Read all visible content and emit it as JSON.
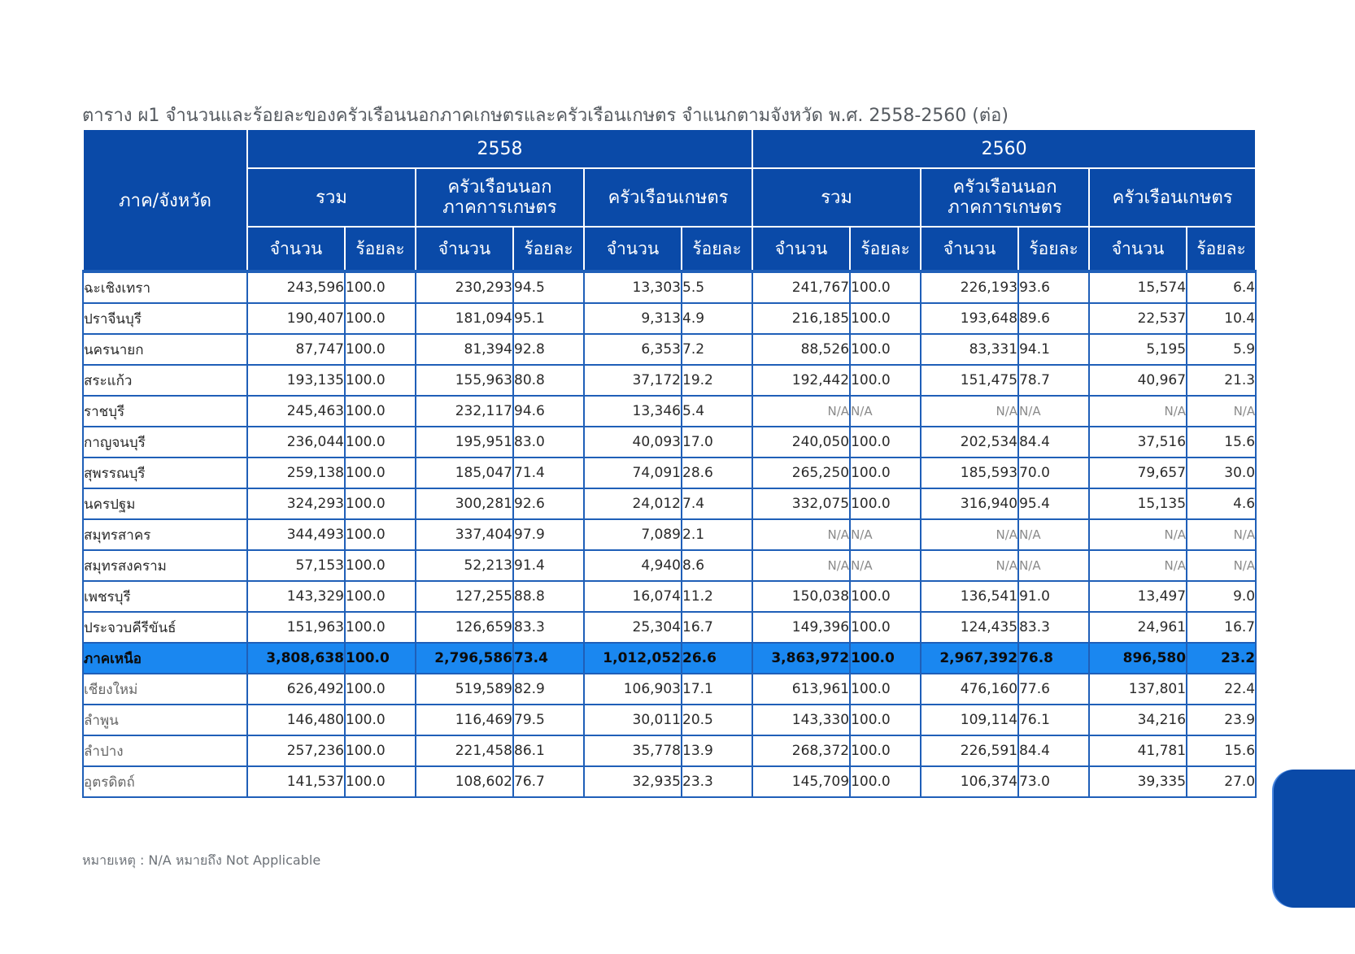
{
  "title": "ตาราง ผ1 จำนวนและร้อยละของครัวเรือนนอกภาคเกษตรและครัวเรือนเกษตร จำแนกตามจังหวัด พ.ศ. 2558-2560 (ต่อ)",
  "header": {
    "region": "ภาค/จังหวัด",
    "years": [
      "2558",
      "2560"
    ],
    "groups": [
      "รวม",
      "ครัวเรือนนอก ภาคการเกษตร",
      "ครัวเรือนเกษตร"
    ],
    "group_lines": [
      [
        "รวม"
      ],
      [
        "ครัวเรือนนอก",
        "ภาคการเกษตร"
      ],
      [
        "ครัวเรือนเกษตร"
      ]
    ],
    "count": "จำนวน",
    "percent": "ร้อยละ"
  },
  "rows": [
    {
      "name": "ฉะเชิงเทรา",
      "type": "province",
      "v": [
        "243,596",
        "100.0",
        "230,293",
        "94.5",
        "13,303",
        "5.5",
        "241,767",
        "100.0",
        "226,193",
        "93.6",
        "15,574",
        "6.4"
      ]
    },
    {
      "name": "ปราจีนบุรี",
      "type": "province",
      "v": [
        "190,407",
        "100.0",
        "181,094",
        "95.1",
        "9,313",
        "4.9",
        "216,185",
        "100.0",
        "193,648",
        "89.6",
        "22,537",
        "10.4"
      ]
    },
    {
      "name": "นครนายก",
      "type": "province",
      "v": [
        "87,747",
        "100.0",
        "81,394",
        "92.8",
        "6,353",
        "7.2",
        "88,526",
        "100.0",
        "83,331",
        "94.1",
        "5,195",
        "5.9"
      ]
    },
    {
      "name": "สระแก้ว",
      "type": "province",
      "v": [
        "193,135",
        "100.0",
        "155,963",
        "80.8",
        "37,172",
        "19.2",
        "192,442",
        "100.0",
        "151,475",
        "78.7",
        "40,967",
        "21.3"
      ]
    },
    {
      "name": "ราชบุรี",
      "type": "province",
      "v": [
        "245,463",
        "100.0",
        "232,117",
        "94.6",
        "13,346",
        "5.4",
        "N/A",
        "N/A",
        "N/A",
        "N/A",
        "N/A",
        "N/A"
      ]
    },
    {
      "name": "กาญจนบุรี",
      "type": "province",
      "v": [
        "236,044",
        "100.0",
        "195,951",
        "83.0",
        "40,093",
        "17.0",
        "240,050",
        "100.0",
        "202,534",
        "84.4",
        "37,516",
        "15.6"
      ]
    },
    {
      "name": "สุพรรณบุรี",
      "type": "province",
      "v": [
        "259,138",
        "100.0",
        "185,047",
        "71.4",
        "74,091",
        "28.6",
        "265,250",
        "100.0",
        "185,593",
        "70.0",
        "79,657",
        "30.0"
      ]
    },
    {
      "name": "นครปฐม",
      "type": "province",
      "v": [
        "324,293",
        "100.0",
        "300,281",
        "92.6",
        "24,012",
        "7.4",
        "332,075",
        "100.0",
        "316,940",
        "95.4",
        "15,135",
        "4.6"
      ]
    },
    {
      "name": "สมุทรสาคร",
      "type": "province",
      "v": [
        "344,493",
        "100.0",
        "337,404",
        "97.9",
        "7,089",
        "2.1",
        "N/A",
        "N/A",
        "N/A",
        "N/A",
        "N/A",
        "N/A"
      ]
    },
    {
      "name": "สมุทรสงคราม",
      "type": "province",
      "v": [
        "57,153",
        "100.0",
        "52,213",
        "91.4",
        "4,940",
        "8.6",
        "N/A",
        "N/A",
        "N/A",
        "N/A",
        "N/A",
        "N/A"
      ]
    },
    {
      "name": "เพชรบุรี",
      "type": "province",
      "v": [
        "143,329",
        "100.0",
        "127,255",
        "88.8",
        "16,074",
        "11.2",
        "150,038",
        "100.0",
        "136,541",
        "91.0",
        "13,497",
        "9.0"
      ]
    },
    {
      "name": "ประจวบคีรีขันธ์",
      "type": "province",
      "v": [
        "151,963",
        "100.0",
        "126,659",
        "83.3",
        "25,304",
        "16.7",
        "149,396",
        "100.0",
        "124,435",
        "83.3",
        "24,961",
        "16.7"
      ]
    },
    {
      "name": "ภาคเหนือ",
      "type": "region",
      "v": [
        "3,808,638",
        "100.0",
        "2,796,586",
        "73.4",
        "1,012,052",
        "26.6",
        "3,863,972",
        "100.0",
        "2,967,392",
        "76.8",
        "896,580",
        "23.2"
      ]
    },
    {
      "name": "เชียงใหม่",
      "type": "sub",
      "v": [
        "626,492",
        "100.0",
        "519,589",
        "82.9",
        "106,903",
        "17.1",
        "613,961",
        "100.0",
        "476,160",
        "77.6",
        "137,801",
        "22.4"
      ]
    },
    {
      "name": "ลำพูน",
      "type": "sub",
      "v": [
        "146,480",
        "100.0",
        "116,469",
        "79.5",
        "30,011",
        "20.5",
        "143,330",
        "100.0",
        "109,114",
        "76.1",
        "34,216",
        "23.9"
      ]
    },
    {
      "name": "ลำปาง",
      "type": "sub",
      "v": [
        "257,236",
        "100.0",
        "221,458",
        "86.1",
        "35,778",
        "13.9",
        "268,372",
        "100.0",
        "226,591",
        "84.4",
        "41,781",
        "15.6"
      ]
    },
    {
      "name": "อุตรดิตถ์",
      "type": "sub",
      "v": [
        "141,537",
        "100.0",
        "108,602",
        "76.7",
        "32,935",
        "23.3",
        "145,709",
        "100.0",
        "106,374",
        "73.0",
        "39,335",
        "27.0"
      ]
    }
  ],
  "note": "หมายเหตุ : N/A หมายถึง Not Applicable",
  "colors": {
    "header_bg": "#0a4aa8",
    "region_row_bg": "#1a87f0",
    "border": "#1f5fb8"
  }
}
